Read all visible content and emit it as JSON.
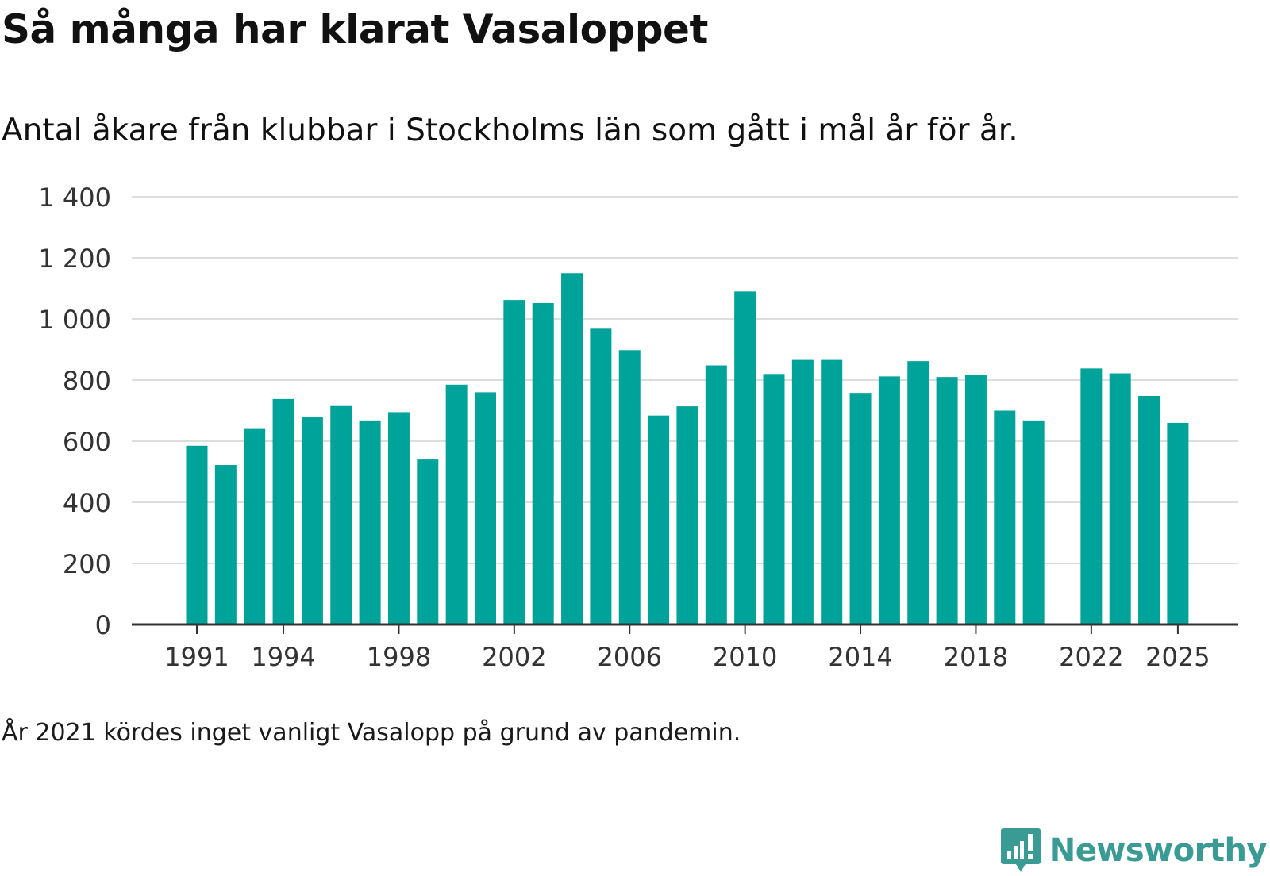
{
  "title": "Så många har klarat Vasaloppet",
  "subtitle": "Antal åkare från klubbar i Stockholms län som gått i mål år för år.",
  "note": "År 2021 kördes inget vanligt Vasalopp på grund av pandemin.",
  "brand": {
    "name": "Newsworthy",
    "icon": "newsworthy-logo-icon",
    "color": "#3a9a94"
  },
  "colors": {
    "bar": "#00a399",
    "grid": "#dddddd",
    "axis": "#333333"
  },
  "chart_data": {
    "type": "bar",
    "title": "Så många har klarat Vasaloppet",
    "xlabel": "",
    "ylabel": "",
    "ylim": [
      0,
      1400
    ],
    "yticks": [
      0,
      200,
      400,
      600,
      800,
      1000,
      1200,
      1400
    ],
    "ytick_labels": [
      "0",
      "200",
      "400",
      "600",
      "800",
      "1 000",
      "1 200",
      "1 400"
    ],
    "xtick_labels": [
      "1991",
      "1994",
      "1998",
      "2002",
      "2006",
      "2010",
      "2014",
      "2018",
      "2022",
      "2025"
    ],
    "grid": true,
    "categories": [
      "1991",
      "1992",
      "1993",
      "1994",
      "1995",
      "1996",
      "1997",
      "1998",
      "1999",
      "2000",
      "2001",
      "2002",
      "2003",
      "2004",
      "2005",
      "2006",
      "2007",
      "2008",
      "2009",
      "2010",
      "2011",
      "2012",
      "2013",
      "2014",
      "2015",
      "2016",
      "2017",
      "2018",
      "2019",
      "2020",
      "2021",
      "2022",
      "2023",
      "2024",
      "2025"
    ],
    "values": [
      585,
      522,
      640,
      738,
      678,
      715,
      668,
      695,
      540,
      785,
      760,
      1062,
      1052,
      1150,
      968,
      898,
      684,
      714,
      848,
      1090,
      820,
      866,
      866,
      758,
      812,
      862,
      810,
      816,
      700,
      668,
      null,
      838,
      822,
      748,
      660
    ]
  }
}
